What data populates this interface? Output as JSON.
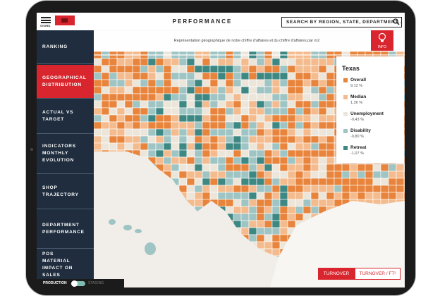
{
  "header": {
    "logo_label": "STORES",
    "title": "PERFORMANCE",
    "search_placeholder": "SEARCH BY REGION, STATE, DEPARTMENT..."
  },
  "sidebar": {
    "items": [
      "RANKING",
      "GEOGRAPHICAL DISTRIBUTION",
      "ACTUAL VS TARGET",
      "INDICATORS MONTHLY EVOLUTION",
      "SHOP TRAJECTORY",
      "DEPARTMENT PERFORMANCE",
      "POS MATERIAL IMPACT ON SALES"
    ]
  },
  "environment_toggle": {
    "left": "PRODUCTION",
    "right": "STAGING"
  },
  "map": {
    "subtitle": "Représentation géographique de notre chiffre d'affaires et du chiffre d'affaires par m2",
    "info_button": "INFO",
    "legend": {
      "title": "Texas",
      "items": [
        {
          "label": "Overall",
          "value": "9,12 %",
          "color": "#e8843c"
        },
        {
          "label": "Median",
          "value": "1,26 %",
          "color": "#f4bc8e"
        },
        {
          "label": "Unemployment",
          "value": "-0,43 %",
          "color": "#ece5da"
        },
        {
          "label": "Disability",
          "value": "-0,80 %",
          "color": "#9ec4c3"
        },
        {
          "label": "Retreat",
          "value": "-1,07 %",
          "color": "#3e8884"
        }
      ]
    }
  },
  "buttons": [
    "TURNOVER",
    "TURNOVER / FT²"
  ]
}
